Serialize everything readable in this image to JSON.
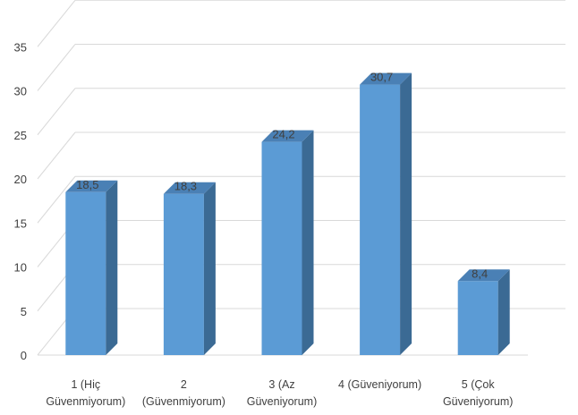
{
  "chart_data": {
    "type": "bar",
    "style": "3d-column",
    "title": "",
    "xlabel": "",
    "ylabel": "",
    "categories": [
      [
        "1 (Hiç",
        "Güvenmiyorum)"
      ],
      [
        "2",
        "(Güvenmiyorum)"
      ],
      [
        "3 (Az",
        "Güveniyorum)"
      ],
      [
        "4 (Güveniyorum)"
      ],
      [
        "5 (Çok",
        "Güveniyorum)"
      ]
    ],
    "values": [
      18.5,
      18.3,
      24.2,
      30.7,
      8.4
    ],
    "data_labels": [
      "18,5",
      "18,3",
      "24,2",
      "30,7",
      "8,4"
    ],
    "ylim": [
      0,
      35
    ],
    "yticks": [
      0,
      5,
      10,
      15,
      20,
      25,
      30,
      35
    ],
    "grid": true,
    "legend": "none",
    "colors": {
      "bar_front": "#5b9bd5",
      "bar_side": "#3b6a94",
      "bar_top": "#4a80b5",
      "gridline": "#d9d9d9",
      "text": "#404040"
    }
  }
}
